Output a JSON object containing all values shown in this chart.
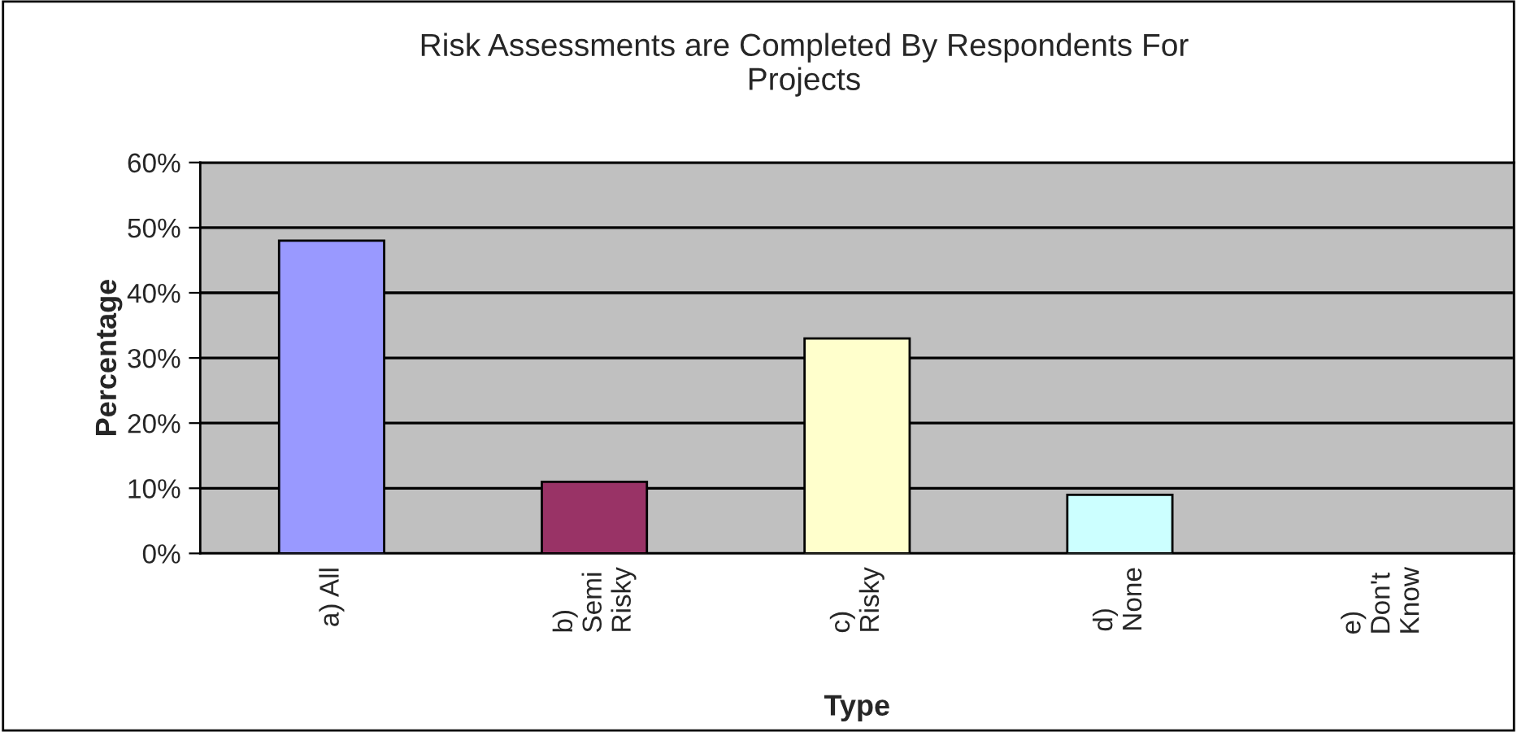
{
  "chart_data": {
    "type": "bar",
    "title": "Risk Assessments are Completed By Respondents For\nProjects",
    "xlabel": "Type",
    "ylabel": "Percentage",
    "categories": [
      "a) All",
      "b)\nSemi\nRisky",
      "c)\nRisky",
      "d)\nNone",
      "e)\nDon't\nKnow"
    ],
    "values": [
      48,
      11,
      33,
      9,
      0
    ],
    "colors": [
      "#9999ff",
      "#993366",
      "#ffffcc",
      "#ccffff",
      "#ffffff"
    ],
    "ylim": [
      0,
      60
    ],
    "yticks": [
      {
        "value": 0,
        "label": "0%"
      },
      {
        "value": 10,
        "label": "10%"
      },
      {
        "value": 20,
        "label": "20%"
      },
      {
        "value": 30,
        "label": "30%"
      },
      {
        "value": 40,
        "label": "40%"
      },
      {
        "value": 50,
        "label": "50%"
      },
      {
        "value": 60,
        "label": "60%"
      }
    ],
    "grid": "y",
    "legend": false
  }
}
